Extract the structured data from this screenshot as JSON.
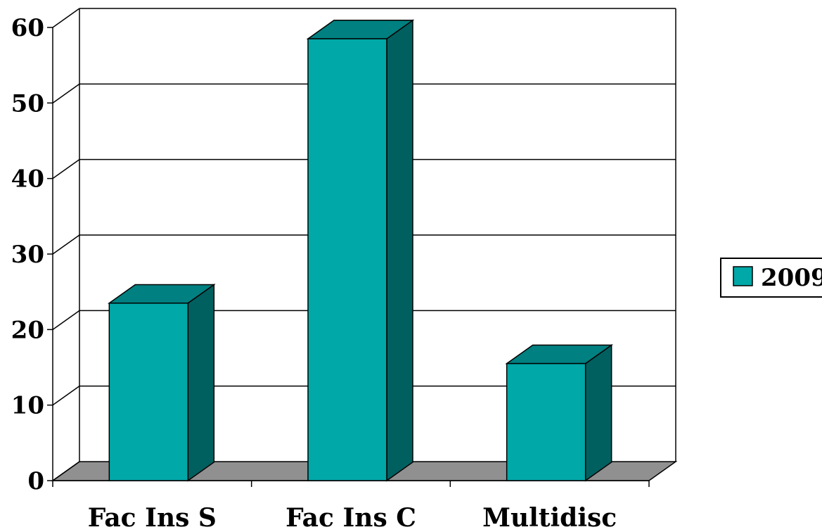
{
  "chart_data": {
    "type": "bar",
    "categories": [
      "Fac Ins S",
      "Fac Ins C",
      "Multidisc"
    ],
    "series": [
      {
        "name": "2009",
        "values": [
          23.5,
          58.5,
          15.5
        ]
      }
    ],
    "y_ticks": [
      "0",
      "10",
      "20",
      "30",
      "40",
      "50",
      "60"
    ],
    "ylim": [
      0,
      60
    ],
    "grid": true,
    "legend_position": "right",
    "colors": {
      "bar_front": "#00A8A8",
      "bar_top": "#008080",
      "bar_side": "#006060",
      "floor": "#909090"
    }
  }
}
